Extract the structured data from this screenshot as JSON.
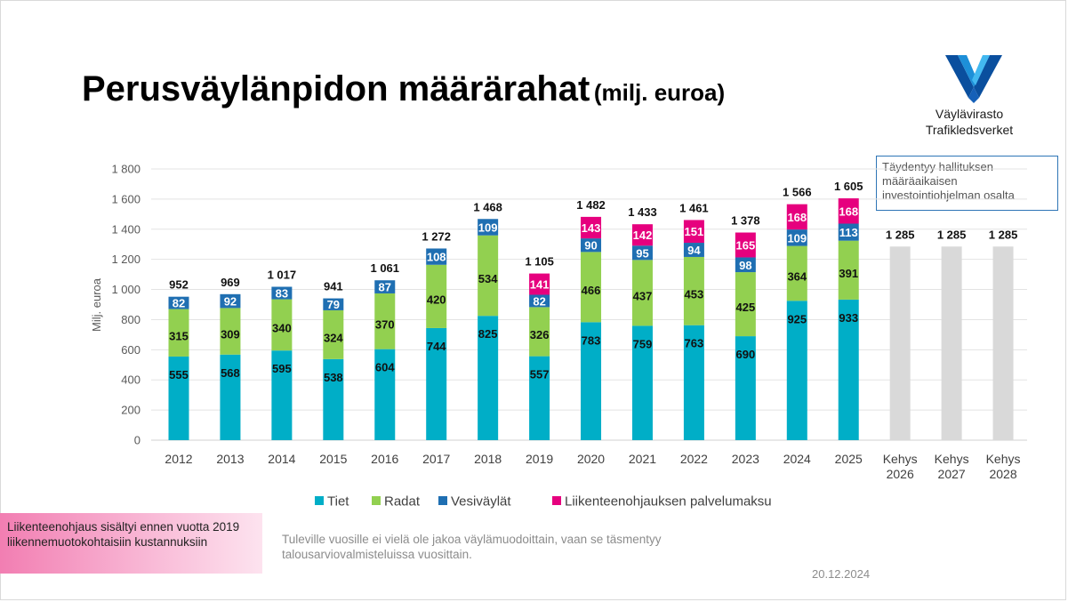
{
  "slide": {
    "title": "Perusväylänpidon määrärahat",
    "title_unit": "(milj. euroa)",
    "logo_line1": "Väylävirasto",
    "logo_line2": "Trafikledsverket",
    "callout": "Täydentyy hallituksen määräaikaisen investointiohjelman osalta",
    "pink_note": "Liikenteenohjaus sisältyi ennen vuotta 2019 liikennemuotokohtaisiin kustannuksiin",
    "footnote": "Tuleville vuosille ei vielä ole jakoa väylämuodoittain, vaan se täsmentyy talousarviovalmisteluissa vuosittain.",
    "date": "20.12.2024"
  },
  "colors": {
    "tiet": "#00aec7",
    "radat": "#92d050",
    "vesivaylat": "#1f6fb2",
    "liikenteenohjaus": "#e6007e",
    "kehys": "#d9d9d9",
    "gridline": "#e3e3e3"
  },
  "chart_data": {
    "type": "bar",
    "stacked": true,
    "ylabel": "Milj. euroa",
    "ylim": [
      0,
      1800
    ],
    "yticks": [
      0,
      200,
      400,
      600,
      800,
      1000,
      1200,
      1400,
      1600,
      1800
    ],
    "ytick_labels": [
      "0",
      "200",
      "400",
      "600",
      "800",
      "1 000",
      "1 200",
      "1 400",
      "1 600",
      "1 800"
    ],
    "grid": true,
    "legend_position": "bottom",
    "categories": [
      "2012",
      "2013",
      "2014",
      "2015",
      "2016",
      "2017",
      "2018",
      "2019",
      "2020",
      "2021",
      "2022",
      "2023",
      "2024",
      "2025",
      "Kehys 2026",
      "Kehys 2027",
      "Kehys 2028"
    ],
    "series": [
      {
        "name": "Tiet",
        "color_key": "tiet",
        "values": [
          555,
          568,
          595,
          538,
          604,
          744,
          825,
          557,
          783,
          759,
          763,
          690,
          925,
          933,
          null,
          null,
          null
        ]
      },
      {
        "name": "Radat",
        "color_key": "radat",
        "values": [
          315,
          309,
          340,
          324,
          370,
          420,
          534,
          326,
          466,
          437,
          453,
          425,
          364,
          391,
          null,
          null,
          null
        ]
      },
      {
        "name": "Vesiväylät",
        "color_key": "vesivaylat",
        "values": [
          82,
          92,
          83,
          79,
          87,
          108,
          109,
          82,
          90,
          95,
          94,
          98,
          109,
          113,
          null,
          null,
          null
        ]
      },
      {
        "name": "Liikenteenohjauksen palvelumaksu",
        "color_key": "liikenteenohjaus",
        "values": [
          null,
          null,
          null,
          null,
          null,
          null,
          null,
          141,
          143,
          142,
          151,
          165,
          168,
          168,
          null,
          null,
          null
        ]
      },
      {
        "color_key": "kehys",
        "values": [
          null,
          null,
          null,
          null,
          null,
          null,
          null,
          null,
          null,
          null,
          null,
          null,
          null,
          null,
          1285,
          1285,
          1285
        ]
      }
    ],
    "total_labels": [
      "952",
      "969",
      "1 017",
      "941",
      "1 061",
      "1 272",
      "1 468",
      "1 105",
      "1 482",
      "1 433",
      "1 461",
      "1 378",
      "1 566",
      "1 605",
      "1 285",
      "1 285",
      "1 285"
    ]
  }
}
